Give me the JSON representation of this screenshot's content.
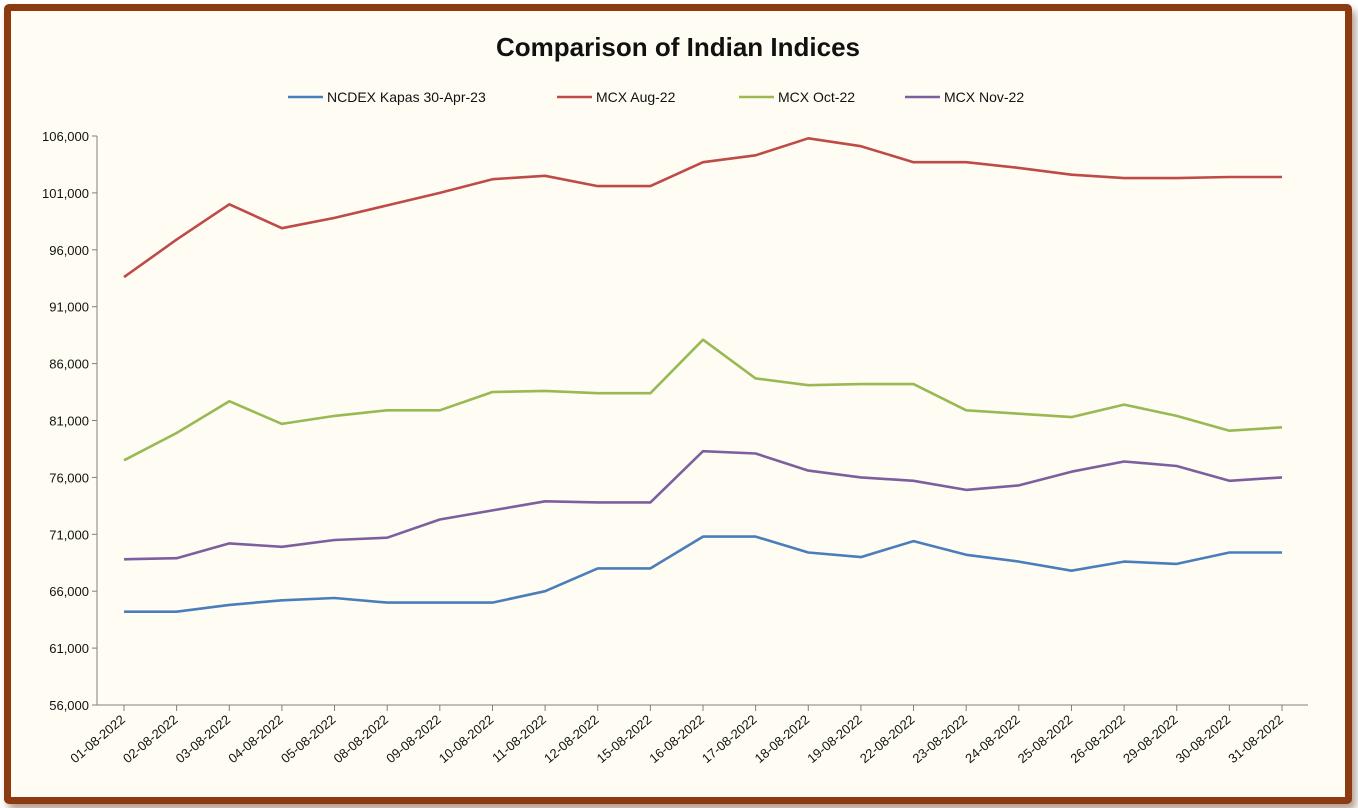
{
  "chart_data": {
    "type": "line",
    "title": "Comparison of Indian Indices",
    "xlabel": "",
    "ylabel": "",
    "ylim": [
      56000,
      106000
    ],
    "yticks": [
      "56,000",
      "61,000",
      "66,000",
      "71,000",
      "76,000",
      "81,000",
      "86,000",
      "91,000",
      "96,000",
      "101,000",
      "106,000"
    ],
    "ytick_values": [
      56000,
      61000,
      66000,
      71000,
      76000,
      81000,
      86000,
      91000,
      96000,
      101000,
      106000
    ],
    "grid": false,
    "legend_position": "top",
    "categories": [
      "01-08-2022",
      "02-08-2022",
      "03-08-2022",
      "04-08-2022",
      "05-08-2022",
      "08-08-2022",
      "09-08-2022",
      "10-08-2022",
      "11-08-2022",
      "12-08-2022",
      "15-08-2022",
      "16-08-2022",
      "17-08-2022",
      "18-08-2022",
      "19-08-2022",
      "22-08-2022",
      "23-08-2022",
      "24-08-2022",
      "25-08-2022",
      "26-08-2022",
      "29-08-2022",
      "30-08-2022",
      "31-08-2022"
    ],
    "series": [
      {
        "name": "NCDEX Kapas 30-Apr-23",
        "color": "#4a7ebb",
        "values": [
          64200,
          64200,
          64800,
          65200,
          65400,
          65000,
          65000,
          65000,
          66000,
          68000,
          68000,
          70800,
          70800,
          69400,
          69000,
          70400,
          69200,
          68600,
          67800,
          68600,
          68400,
          69400,
          69400
        ]
      },
      {
        "name": "MCX Aug-22",
        "color": "#be4b48",
        "values": [
          93600,
          96900,
          100000,
          97900,
          98800,
          99900,
          101000,
          102200,
          102500,
          101600,
          101600,
          103700,
          104300,
          105800,
          105100,
          103700,
          103700,
          103200,
          102600,
          102300,
          102300,
          102400,
          102400
        ]
      },
      {
        "name": "MCX Oct-22",
        "color": "#98b954",
        "values": [
          77500,
          79900,
          82700,
          80700,
          81400,
          81900,
          81900,
          83500,
          83600,
          83400,
          83400,
          88100,
          84700,
          84100,
          84200,
          84200,
          81900,
          81600,
          81300,
          82400,
          81400,
          80100,
          80400
        ]
      },
      {
        "name": "MCX Nov-22",
        "color": "#7d5fa0",
        "values": [
          68800,
          68900,
          70200,
          69900,
          70500,
          70700,
          72300,
          73100,
          73900,
          73800,
          73800,
          78300,
          78100,
          76600,
          76000,
          75700,
          74900,
          75300,
          76500,
          77400,
          77000,
          75700,
          76000
        ]
      }
    ]
  }
}
